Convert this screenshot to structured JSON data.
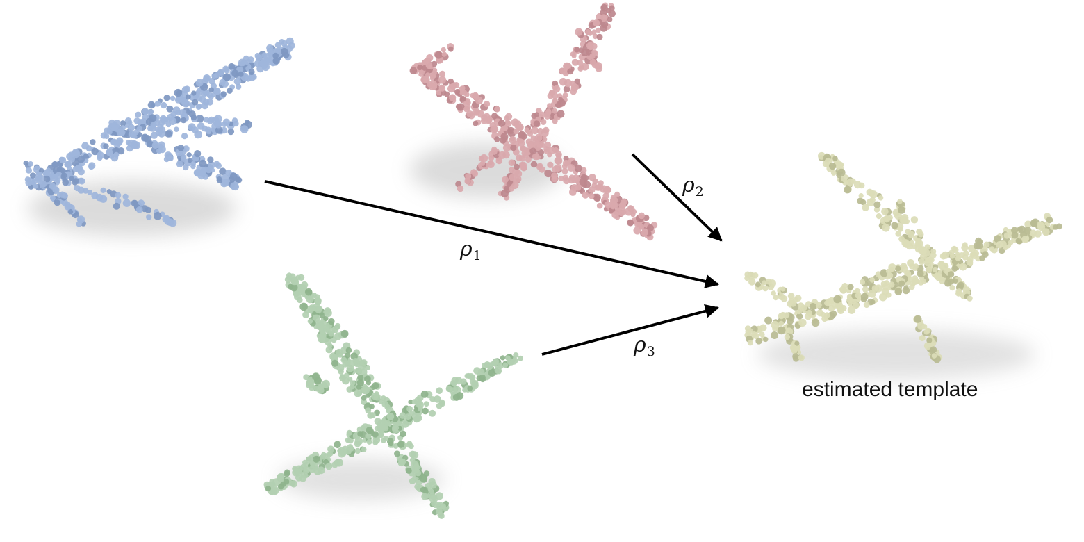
{
  "figure": {
    "caption": "estimated template",
    "transform_labels": [
      {
        "symbol": "ρ",
        "subscript": "1"
      },
      {
        "symbol": "ρ",
        "subscript": "2"
      },
      {
        "symbol": "ρ",
        "subscript": "3"
      }
    ],
    "point_clouds": [
      {
        "id": "blue",
        "color": "#9fb6dc",
        "shade": "#7f98c2"
      },
      {
        "id": "pink",
        "color": "#d9a9ad",
        "shade": "#bd888e"
      },
      {
        "id": "green",
        "color": "#b3d0b1",
        "shade": "#8fb48d"
      },
      {
        "id": "template",
        "color": "#dcddb8",
        "shade": "#b9bb93"
      }
    ]
  }
}
